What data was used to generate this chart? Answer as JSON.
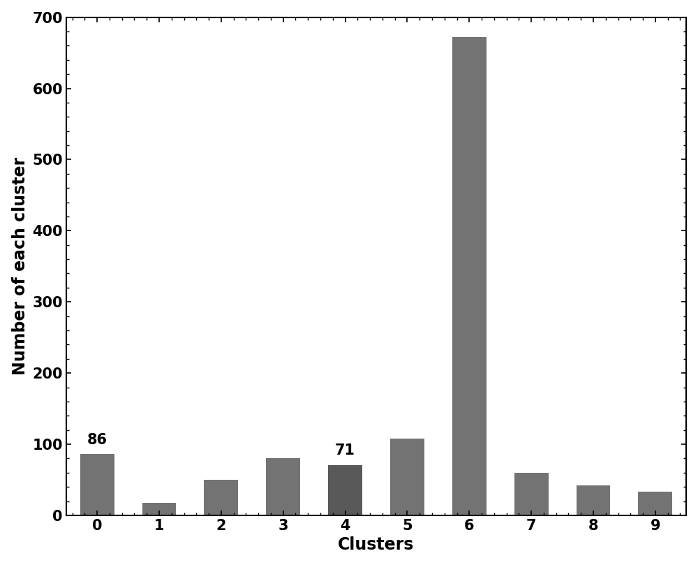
{
  "categories": [
    0,
    1,
    2,
    3,
    4,
    5,
    6,
    7,
    8,
    9
  ],
  "values": [
    86,
    18,
    50,
    80,
    71,
    108,
    672,
    60,
    42,
    33
  ],
  "bar_color": "#737373",
  "bar_color_dark": "#595959",
  "annotated_bars": {
    "0": "86",
    "4": "71"
  },
  "xlabel": "Clusters",
  "ylabel": "Number of each cluster",
  "ylim": [
    0,
    700
  ],
  "yticks": [
    0,
    100,
    200,
    300,
    400,
    500,
    600,
    700
  ],
  "xlabel_fontsize": 17,
  "ylabel_fontsize": 17,
  "tick_fontsize": 15,
  "annotation_fontsize": 15,
  "background_color": "#ffffff",
  "bar_width": 0.55
}
